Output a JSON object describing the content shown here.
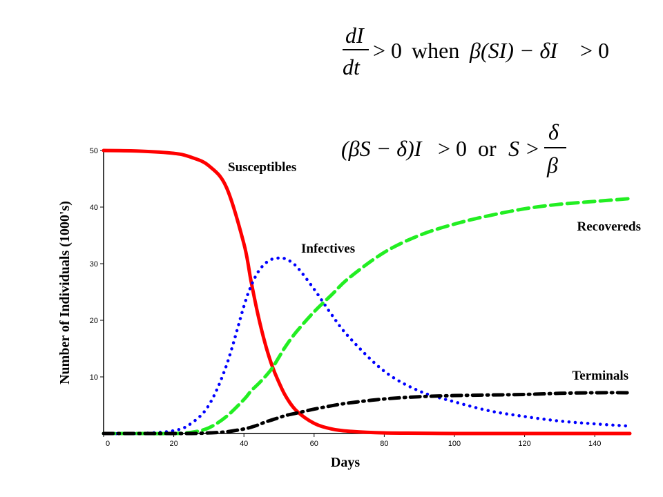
{
  "equations": {
    "line1": "dI/dt > 0 when β(SI) − δI > 0",
    "line2": "(βS − δ)I > 0 or S > δ/β",
    "word_when": "when",
    "word_or": "or"
  },
  "chart_data": {
    "type": "line",
    "title": "",
    "xlabel": "Days",
    "ylabel": "Number of Individuals (1000's)",
    "xlim": [
      0,
      150
    ],
    "ylim": [
      0,
      50
    ],
    "xticks": [
      0,
      20,
      40,
      60,
      80,
      100,
      120,
      140
    ],
    "yticks": [
      10,
      20,
      30,
      40,
      50
    ],
    "grid": false,
    "x": [
      0,
      10,
      20,
      25,
      30,
      35,
      40,
      42,
      44,
      46,
      48,
      50,
      52,
      55,
      60,
      65,
      70,
      80,
      90,
      100,
      110,
      120,
      130,
      140,
      150
    ],
    "series": [
      {
        "name": "Susceptibles",
        "color": "#ff0000",
        "style": "solid",
        "values": [
          50,
          49.9,
          49.5,
          48.8,
          47.3,
          43.5,
          33.5,
          27,
          21,
          16,
          12,
          9,
          6.5,
          4,
          1.8,
          0.8,
          0.4,
          0.1,
          0.05,
          0,
          0,
          0,
          0,
          0,
          0
        ]
      },
      {
        "name": "Infectives",
        "color": "#0000ff",
        "style": "dotted",
        "values": [
          0,
          0,
          0.5,
          1.8,
          5,
          12,
          22.5,
          26,
          28.5,
          30,
          30.8,
          31,
          30.8,
          29.5,
          25.5,
          21,
          17,
          11,
          7.5,
          5.6,
          4,
          3,
          2.2,
          1.7,
          1.3
        ]
      },
      {
        "name": "Recovereds",
        "color": "#22ee22",
        "style": "dashed",
        "values": [
          0,
          0,
          0,
          0.2,
          1,
          3,
          6,
          7.5,
          8.7,
          10,
          11.5,
          13.5,
          15.5,
          18,
          21.5,
          24.5,
          27.5,
          32,
          35,
          37,
          38.5,
          39.7,
          40.5,
          41,
          41.5
        ]
      },
      {
        "name": "Terminals",
        "color": "#000000",
        "style": "dashdot",
        "values": [
          0,
          0,
          0,
          0,
          0.1,
          0.3,
          0.8,
          1.1,
          1.5,
          2,
          2.4,
          2.8,
          3.2,
          3.6,
          4.3,
          4.9,
          5.4,
          6.1,
          6.5,
          6.7,
          6.8,
          6.9,
          7.1,
          7.2,
          7.2
        ]
      }
    ],
    "annotations": [
      "Susceptibles",
      "Infectives",
      "Recovereds",
      "Terminals"
    ]
  }
}
